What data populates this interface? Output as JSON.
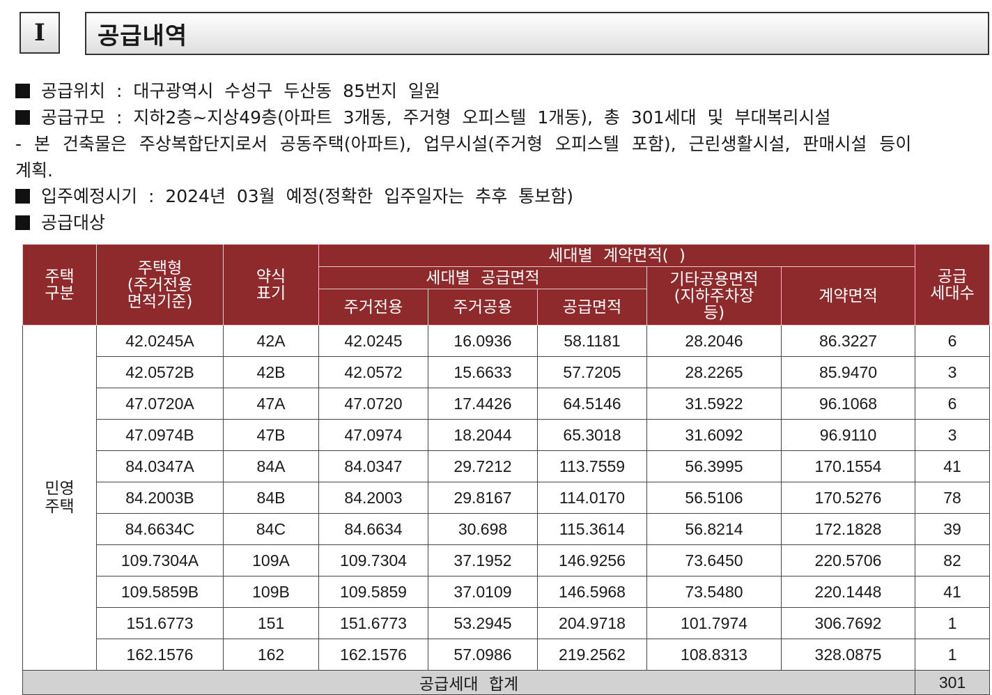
{
  "section": {
    "number": "I",
    "title": "공급내역"
  },
  "lines": [
    "공급위치 : 대구광역시 수성구 두산동 85번지 일원",
    "공급규모 : 지하2층~지상49층(아파트 3개동, 주거형 오피스텔 1개동), 총 301세대 및 부대복리시설",
    "- 본 건축물은 주상복합단지로서 공동주택(아파트), 업무시설(주거형 오피스텔 포함), 근린생활시설, 판매시설 등이",
    "계획.",
    "입주예정시기 : 2024년 03월 예정(정확한 입주일자는 추후 통보함)",
    "공급대상"
  ],
  "table": {
    "headers": {
      "type": "주택\n구분",
      "housing_type": "주택형\n(주거전용\n면적기준)",
      "abbr": "약식\n표기",
      "contract_area_group": "세대별 계약면적( )",
      "supply_area_group": "세대별 공급면적",
      "exclusive": "주거전용",
      "common": "주거공용",
      "supply_area": "공급면적",
      "other_common": "기타공용면적\n(지하주차장\n등)",
      "contract_area": "계약면적",
      "units": "공급\n세대수"
    },
    "category": "민영\n주택",
    "rows": [
      {
        "type": "42.0245A",
        "abbr": "42A",
        "exclusive": "42.0245",
        "common": "16.0936",
        "supply": "58.1181",
        "other": "28.2046",
        "contract": "86.3227",
        "units": "6"
      },
      {
        "type": "42.0572B",
        "abbr": "42B",
        "exclusive": "42.0572",
        "common": "15.6633",
        "supply": "57.7205",
        "other": "28.2265",
        "contract": "85.9470",
        "units": "3"
      },
      {
        "type": "47.0720A",
        "abbr": "47A",
        "exclusive": "47.0720",
        "common": "17.4426",
        "supply": "64.5146",
        "other": "31.5922",
        "contract": "96.1068",
        "units": "6"
      },
      {
        "type": "47.0974B",
        "abbr": "47B",
        "exclusive": "47.0974",
        "common": "18.2044",
        "supply": "65.3018",
        "other": "31.6092",
        "contract": "96.9110",
        "units": "3"
      },
      {
        "type": "84.0347A",
        "abbr": "84A",
        "exclusive": "84.0347",
        "common": "29.7212",
        "supply": "113.7559",
        "other": "56.3995",
        "contract": "170.1554",
        "units": "41"
      },
      {
        "type": "84.2003B",
        "abbr": "84B",
        "exclusive": "84.2003",
        "common": "29.8167",
        "supply": "114.0170",
        "other": "56.5106",
        "contract": "170.5276",
        "units": "78"
      },
      {
        "type": "84.6634C",
        "abbr": "84C",
        "exclusive": "84.6634",
        "common": "30.698",
        "supply": "115.3614",
        "other": "56.8214",
        "contract": "172.1828",
        "units": "39"
      },
      {
        "type": "109.7304A",
        "abbr": "109A",
        "exclusive": "109.7304",
        "common": "37.1952",
        "supply": "146.9256",
        "other": "73.6450",
        "contract": "220.5706",
        "units": "82"
      },
      {
        "type": "109.5859B",
        "abbr": "109B",
        "exclusive": "109.5859",
        "common": "37.0109",
        "supply": "146.5968",
        "other": "73.5480",
        "contract": "220.1448",
        "units": "41"
      },
      {
        "type": "151.6773",
        "abbr": "151",
        "exclusive": "151.6773",
        "common": "53.2945",
        "supply": "204.9718",
        "other": "101.7974",
        "contract": "306.7692",
        "units": "1"
      },
      {
        "type": "162.1576",
        "abbr": "162",
        "exclusive": "162.1576",
        "common": "57.0986",
        "supply": "219.2562",
        "other": "108.8313",
        "contract": "328.0875",
        "units": "1"
      }
    ],
    "total_label": "공급세대 합계",
    "total_units": "301"
  }
}
